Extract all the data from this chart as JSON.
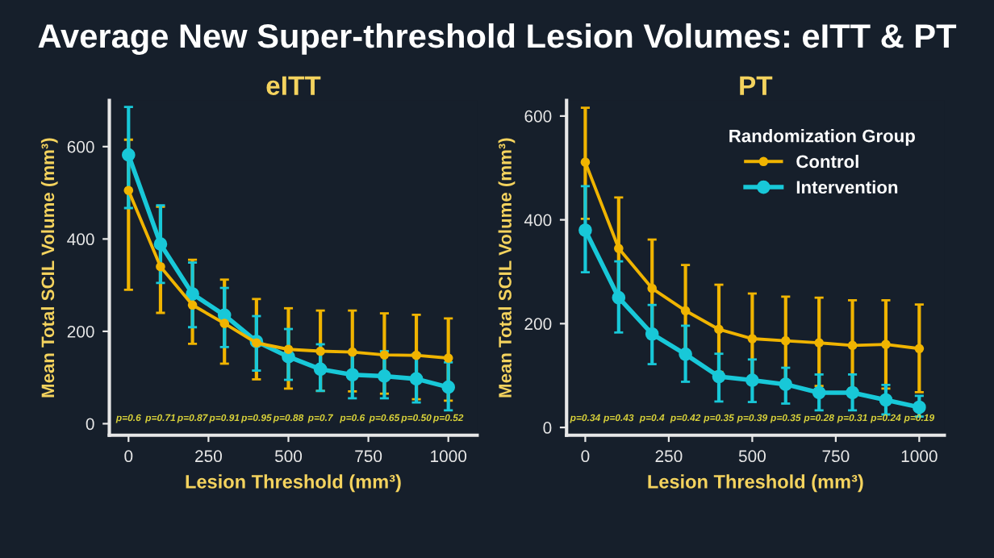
{
  "chart_data": [
    {
      "type": "line",
      "title": "eITT",
      "xlabel": "Lesion Threshold (mm³)",
      "ylabel": "Mean Total SCIL Volume (mm³)",
      "annotations": [
        "Average New Super-threshold Lesion Volumes: eITT & PT",
        "p=0.6",
        "p=0.71",
        "p=0.87",
        "p=0.91",
        "p=0.95",
        "p=0.88",
        "p=0.7",
        "p=0.6",
        "p=0.65",
        "p=0.50",
        "p=0.52"
      ],
      "x": [
        0,
        100,
        200,
        300,
        400,
        500,
        600,
        700,
        800,
        900,
        1000
      ],
      "series": [
        {
          "color": "#f0b400",
          "values": [
            505,
            340,
            257,
            217,
            175,
            161,
            157,
            155,
            149,
            148,
            142
          ],
          "errors": [
            [
              290,
              615
            ],
            [
              240,
              470
            ],
            [
              173,
              355
            ],
            [
              130,
              312
            ],
            [
              96,
              270
            ],
            [
              76,
              250
            ],
            [
              71,
              245
            ],
            [
              70,
              245
            ],
            [
              65,
              239
            ],
            [
              53,
              236
            ],
            [
              50,
              228
            ]
          ]
        },
        {
          "color": "#18c8d8",
          "values": [
            582,
            389,
            281,
            235,
            178,
            145,
            118,
            106,
            103,
            97,
            79
          ],
          "errors": [
            [
              467,
              686
            ],
            [
              305,
              473
            ],
            [
              209,
              349
            ],
            [
              166,
              294
            ],
            [
              115,
              233
            ],
            [
              95,
              205
            ],
            [
              71,
              172
            ],
            [
              55,
              157
            ],
            [
              55,
              157
            ],
            [
              46,
              151
            ],
            [
              29,
              133
            ]
          ]
        }
      ],
      "xlim": [
        -60,
        1090
      ],
      "ylim": [
        -25,
        700
      ],
      "xticks": [
        0,
        250,
        500,
        750,
        1000
      ],
      "yticks": [
        0,
        200,
        400,
        600
      ],
      "grid": false,
      "legend": false,
      "marker": "circle",
      "line_style": "solid"
    },
    {
      "type": "line",
      "title": "PT",
      "xlabel": "Lesion Threshold (mm³)",
      "ylabel": "Mean Total SCIL Volume (mm³)",
      "legend_title": "Randomization Group",
      "annotations": [
        "p=0.34",
        "p=0.43",
        "p=0.4",
        "p=0.42",
        "p=0.35",
        "p=0.39",
        "p=0.35",
        "p=0.28",
        "p=0.31",
        "p=0.24",
        "p=0.19"
      ],
      "x": [
        0,
        100,
        200,
        300,
        400,
        500,
        600,
        700,
        800,
        900,
        1000
      ],
      "series": [
        {
          "name": "Control",
          "color": "#f0b400",
          "values": [
            511,
            345,
            268,
            225,
            189,
            171,
            167,
            163,
            158,
            160,
            152
          ],
          "errors": [
            [
              402,
              616
            ],
            [
              250,
              443
            ],
            [
              178,
              362
            ],
            [
              137,
              313
            ],
            [
              107,
              275
            ],
            [
              90,
              258
            ],
            [
              85,
              252
            ],
            [
              80,
              250
            ],
            [
              75,
              245
            ],
            [
              75,
              245
            ],
            [
              68,
              237
            ]
          ]
        },
        {
          "name": "Intervention",
          "color": "#18c8d8",
          "values": [
            380,
            250,
            180,
            141,
            98,
            91,
            83,
            67,
            67,
            53,
            39
          ],
          "errors": [
            [
              299,
              465
            ],
            [
              183,
              320
            ],
            [
              122,
              236
            ],
            [
              88,
              196
            ],
            [
              50,
              142
            ],
            [
              49,
              131
            ],
            [
              46,
              115
            ],
            [
              33,
              102
            ],
            [
              33,
              102
            ],
            [
              25,
              82
            ],
            [
              21,
              61
            ]
          ]
        }
      ],
      "xlim": [
        -56,
        1075
      ],
      "ylim": [
        -15,
        630
      ],
      "xticks": [
        0,
        250,
        500,
        750,
        1000
      ],
      "yticks": [
        0,
        200,
        400,
        600
      ],
      "grid": false,
      "legend": "top right",
      "marker": "circle",
      "line_style": "solid"
    }
  ]
}
